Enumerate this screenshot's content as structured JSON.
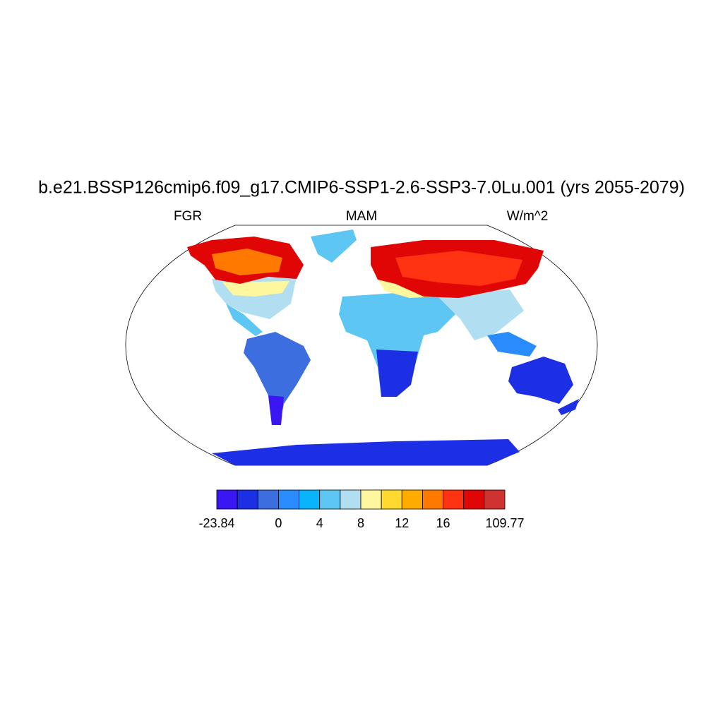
{
  "title": "b.e21.BSSP126cmip6.f09_g17.CMIP6-SSP1-2.6-SSP3-7.0Lu.001 (yrs 2055-2079)",
  "left_string": "FGR",
  "center_string": "MAM",
  "right_string": "W/m^2",
  "colorbar": {
    "colors": [
      "#3a16f2",
      "#1c2fe4",
      "#3d6ee0",
      "#2a8cfc",
      "#0ab4fa",
      "#5ec6f3",
      "#b2def2",
      "#fff79e",
      "#ffd930",
      "#ffab00",
      "#ff7800",
      "#ff3212",
      "#e00606",
      "#d03232"
    ],
    "labels": [
      "-23.84",
      null,
      null,
      "0",
      null,
      "4",
      null,
      "8",
      null,
      "12",
      null,
      "16",
      null,
      null,
      "109.77"
    ]
  }
}
